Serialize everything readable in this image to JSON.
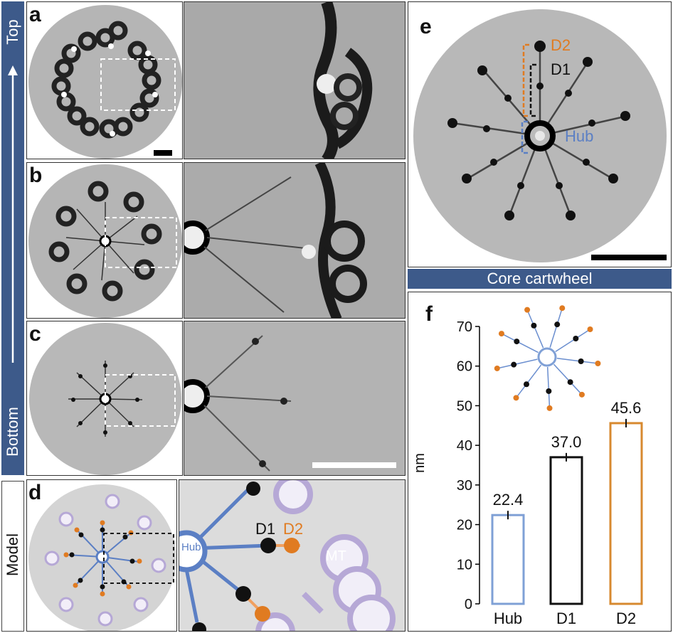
{
  "left_bar": {
    "top_label": "Top",
    "bottom_label": "Bottom"
  },
  "model_label": "Model",
  "panels": {
    "a": "a",
    "b": "b",
    "c": "c",
    "d": "d",
    "e": "e",
    "f": "f"
  },
  "panel_d": {
    "hub": "Hub",
    "d1": "D1",
    "d2": "D2",
    "mt": "MT"
  },
  "panel_e": {
    "d2": "D2",
    "d1": "D1",
    "hub": "Hub",
    "caption": "Core cartwheel"
  },
  "chart_data": {
    "type": "bar",
    "categories": [
      "Hub",
      "D1",
      "D2"
    ],
    "values": [
      22.4,
      37.0,
      45.6
    ],
    "value_labels": [
      "22.4",
      "37.0",
      "45.6"
    ],
    "bar_colors": [
      "#7fa0d6",
      "#111111",
      "#d7892f"
    ],
    "ylabel": "nm",
    "ylim": [
      0,
      70
    ],
    "yticks": [
      "0",
      "10",
      "20",
      "30",
      "40",
      "50",
      "60",
      "70"
    ],
    "grid": false
  },
  "colors": {
    "blue_bar": "#3d5a8a",
    "hub_blue": "#7fa0d6",
    "d2_orange": "#e07b21",
    "mt_purple": "#a898c8"
  }
}
